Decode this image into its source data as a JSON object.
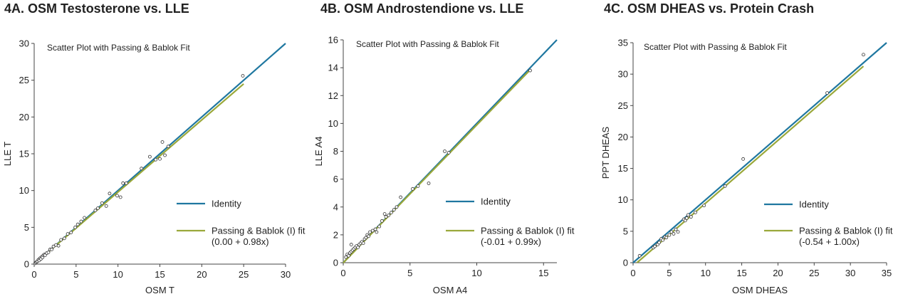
{
  "chart_data": [
    {
      "type": "scatter",
      "title": "4A. OSM Testosterone vs. LLE",
      "subtitle": "Scatter Plot with Passing & Bablok Fit",
      "xlabel": "OSM T",
      "ylabel": "LLE T",
      "xlim": [
        0,
        30
      ],
      "ylim": [
        0,
        30
      ],
      "xticks": [
        0,
        5,
        10,
        15,
        20,
        25,
        30
      ],
      "yticks": [
        0,
        5,
        10,
        15,
        20,
        25,
        30
      ],
      "grid": false,
      "legend_position": "right",
      "series": [
        {
          "name": "Identity",
          "kind": "line",
          "color": "#1f77a0",
          "x": [
            0,
            30
          ],
          "y": [
            0,
            30
          ]
        },
        {
          "name": "Passing & Bablok (I) fit",
          "legend_note": "(0.00 + 0.98x)",
          "kind": "line",
          "color": "#9aa83a",
          "x": [
            0,
            25
          ],
          "y": [
            0,
            24.5
          ]
        },
        {
          "name": "",
          "kind": "points",
          "color": "#333333",
          "x": [
            0.1,
            0.2,
            0.3,
            0.4,
            0.5,
            0.6,
            0.7,
            0.8,
            0.9,
            1.0,
            1.1,
            1.2,
            1.3,
            1.5,
            1.7,
            1.9,
            2.1,
            2.3,
            2.6,
            2.9,
            3.2,
            3.6,
            4.0,
            4.4,
            4.9,
            5.2,
            5.6,
            6.0,
            7.3,
            7.6,
            8.1,
            8.6,
            9.0,
            9.9,
            10.3,
            10.6,
            11.0,
            12.8,
            13.8,
            14.5,
            15.0,
            15.3,
            15.6,
            16.0,
            24.9
          ],
          "y": [
            0.1,
            0.2,
            0.3,
            0.4,
            0.6,
            0.5,
            0.8,
            0.7,
            1.0,
            0.9,
            1.2,
            1.3,
            1.2,
            1.5,
            1.6,
            2.0,
            2.0,
            2.4,
            2.6,
            2.5,
            3.3,
            3.5,
            4.1,
            4.3,
            5.0,
            5.4,
            5.8,
            6.3,
            7.3,
            7.6,
            8.3,
            7.9,
            9.6,
            9.3,
            9.1,
            11.0,
            11.0,
            13.0,
            14.6,
            14.2,
            14.3,
            16.6,
            14.8,
            16.0,
            25.6
          ]
        }
      ]
    },
    {
      "type": "scatter",
      "title": "4B. OSM Androstendione vs. LLE",
      "subtitle": "Scatter Plot with Passing & Bablok Fit",
      "xlabel": "OSM A4",
      "ylabel": "LLE A4",
      "xlim": [
        0,
        16
      ],
      "ylim": [
        0,
        16
      ],
      "xticks": [
        0,
        5,
        10,
        15
      ],
      "yticks": [
        0,
        2,
        4,
        6,
        8,
        10,
        12,
        14,
        16
      ],
      "grid": false,
      "legend_position": "right",
      "series": [
        {
          "name": "Identity",
          "kind": "line",
          "color": "#1f77a0",
          "x": [
            0,
            16
          ],
          "y": [
            0,
            16
          ]
        },
        {
          "name": "Passing & Bablok (I) fit",
          "legend_note": "(-0.01 + 0.99x)",
          "kind": "line",
          "color": "#9aa83a",
          "x": [
            0,
            14
          ],
          "y": [
            -0.01,
            13.85
          ]
        },
        {
          "name": "",
          "kind": "points",
          "color": "#333333",
          "x": [
            0.2,
            0.3,
            0.4,
            0.5,
            0.6,
            0.6,
            0.7,
            0.8,
            0.9,
            1.0,
            1.1,
            1.2,
            1.3,
            1.4,
            1.5,
            1.6,
            1.7,
            1.8,
            1.9,
            2.0,
            2.2,
            2.4,
            2.5,
            2.7,
            2.9,
            3.1,
            3.2,
            3.4,
            3.6,
            3.8,
            4.0,
            4.3,
            5.2,
            5.6,
            6.4,
            7.6,
            7.9,
            14.0
          ],
          "y": [
            0.4,
            0.6,
            0.5,
            0.7,
            1.3,
            0.8,
            0.9,
            1.0,
            1.1,
            1.2,
            1.1,
            1.3,
            1.4,
            1.5,
            1.4,
            1.7,
            1.8,
            2.0,
            1.9,
            2.2,
            2.3,
            2.4,
            2.2,
            2.6,
            3.0,
            3.5,
            3.3,
            3.4,
            3.6,
            3.8,
            4.0,
            4.7,
            5.3,
            5.5,
            5.7,
            8.0,
            7.9,
            13.8
          ]
        }
      ]
    },
    {
      "type": "scatter",
      "title": "4C. OSM DHEAS vs. Protein Crash",
      "subtitle": "Scatter Plot with Passing & Bablok Fit",
      "xlabel": "OSM DHEAS",
      "ylabel": "PPT DHEAS",
      "xlim": [
        0,
        35
      ],
      "ylim": [
        0,
        35
      ],
      "xticks": [
        0,
        5,
        10,
        15,
        20,
        25,
        30,
        35
      ],
      "yticks": [
        0,
        5,
        10,
        15,
        20,
        25,
        30,
        35
      ],
      "grid": false,
      "legend_position": "right",
      "series": [
        {
          "name": "Identity",
          "kind": "line",
          "color": "#1f77a0",
          "x": [
            0,
            35
          ],
          "y": [
            0,
            35
          ]
        },
        {
          "name": "Passing & Bablok (I) fit",
          "legend_note": "(-0.54 + 1.00x)",
          "kind": "line",
          "color": "#9aa83a",
          "x": [
            0.54,
            31.8
          ],
          "y": [
            0,
            31.26
          ]
        },
        {
          "name": "",
          "kind": "points",
          "color": "#333333",
          "x": [
            0.9,
            2.8,
            3.0,
            3.4,
            3.6,
            3.9,
            4.1,
            4.4,
            4.6,
            5.0,
            5.3,
            5.6,
            5.9,
            6.2,
            7.0,
            7.2,
            7.4,
            7.6,
            8.0,
            8.6,
            9.8,
            12.7,
            15.2,
            26.8,
            31.8
          ],
          "y": [
            1.1,
            2.4,
            2.6,
            2.9,
            3.2,
            3.8,
            3.6,
            4.1,
            4.0,
            4.4,
            4.9,
            4.6,
            5.3,
            4.9,
            6.9,
            6.7,
            7.1,
            7.6,
            7.3,
            8.0,
            9.1,
            12.2,
            16.5,
            27.0,
            33.1
          ]
        }
      ]
    }
  ]
}
